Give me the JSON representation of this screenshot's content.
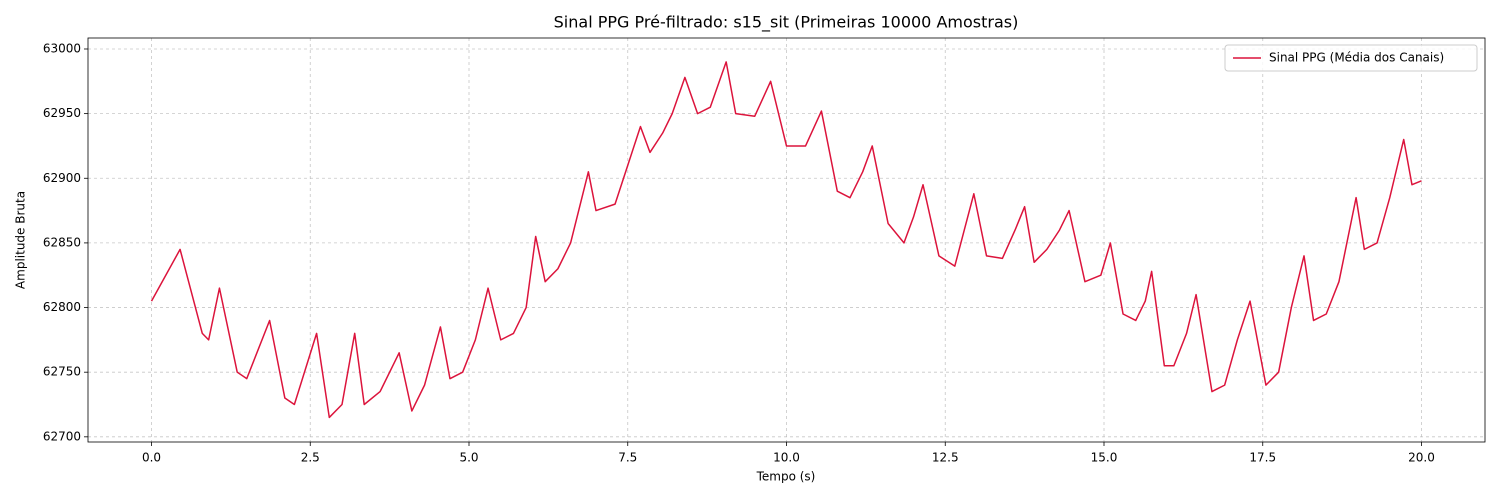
{
  "chart_data": {
    "type": "line",
    "title": "Sinal PPG Pré-filtrado: s15_sit (Primeiras 10000 Amostras)",
    "x_label": "Tempo (s)",
    "y_label": "Amplitude Bruta",
    "xlim": [
      -1,
      21
    ],
    "ylim": [
      62696,
      63008.5
    ],
    "xticks": [
      {
        "value": 0,
        "label": "0.0"
      },
      {
        "value": 2.5,
        "label": "2.5"
      },
      {
        "value": 5,
        "label": "5.0"
      },
      {
        "value": 7.5,
        "label": "7.5"
      },
      {
        "value": 10,
        "label": "10.0"
      },
      {
        "value": 12.5,
        "label": "12.5"
      },
      {
        "value": 15,
        "label": "15.0"
      },
      {
        "value": 17.5,
        "label": "17.5"
      },
      {
        "value": 20,
        "label": "20.0"
      }
    ],
    "yticks": [
      62700,
      62750,
      62800,
      62850,
      62900,
      62950,
      63000
    ],
    "grid": true,
    "legend": "upper right",
    "x": [
      0,
      0.45,
      0.8,
      0.9,
      1.07,
      1.35,
      1.5,
      1.86,
      2.1,
      2.25,
      2.6,
      2.8,
      3.0,
      3.2,
      3.35,
      3.6,
      3.9,
      4.1,
      4.3,
      4.55,
      4.7,
      4.9,
      5.1,
      5.3,
      5.5,
      5.7,
      5.9,
      6.05,
      6.2,
      6.4,
      6.6,
      6.88,
      7.0,
      7.3,
      7.5,
      7.7,
      7.85,
      8.05,
      8.2,
      8.4,
      8.6,
      8.8,
      9.05,
      9.2,
      9.5,
      9.75,
      10.0,
      10.3,
      10.55,
      10.8,
      11.0,
      11.2,
      11.35,
      11.6,
      11.85,
      12.0,
      12.15,
      12.4,
      12.65,
      12.8,
      12.95,
      13.15,
      13.4,
      13.6,
      13.75,
      13.9,
      14.1,
      14.3,
      14.45,
      14.7,
      14.95,
      15.1,
      15.3,
      15.5,
      15.65,
      15.75,
      15.95,
      16.1,
      16.3,
      16.45,
      16.7,
      16.9,
      17.1,
      17.3,
      17.55,
      17.75,
      17.95,
      18.15,
      18.3,
      18.5,
      18.7,
      18.97,
      19.1,
      19.3,
      19.5,
      19.72,
      19.85,
      20.0
    ],
    "series": [
      {
        "name": "Sinal PPG (Média dos Canais)",
        "color": "#dc143c",
        "values": [
          62805,
          62845,
          62780,
          62775,
          62815,
          62750,
          62745,
          62790,
          62730,
          62725,
          62780,
          62715,
          62725,
          62780,
          62725,
          62735,
          62765,
          62720,
          62740,
          62785,
          62745,
          62750,
          62775,
          62815,
          62775,
          62780,
          62800,
          62855,
          62820,
          62830,
          62850,
          62905,
          62875,
          62880,
          62910,
          62940,
          62920,
          62935,
          62950,
          62978,
          62950,
          62955,
          62990,
          62950,
          62948,
          62975,
          62925,
          62925,
          62952,
          62890,
          62885,
          62905,
          62925,
          62865,
          62850,
          62870,
          62895,
          62840,
          62832,
          62860,
          62888,
          62840,
          62838,
          62860,
          62878,
          62835,
          62845,
          62860,
          62875,
          62820,
          62825,
          62850,
          62795,
          62790,
          62805,
          62828,
          62755,
          62755,
          62780,
          62810,
          62735,
          62740,
          62775,
          62805,
          62740,
          62750,
          62800,
          62840,
          62790,
          62795,
          62820,
          62885,
          62845,
          62850,
          62885,
          62930,
          62895,
          62898
        ]
      }
    ]
  }
}
